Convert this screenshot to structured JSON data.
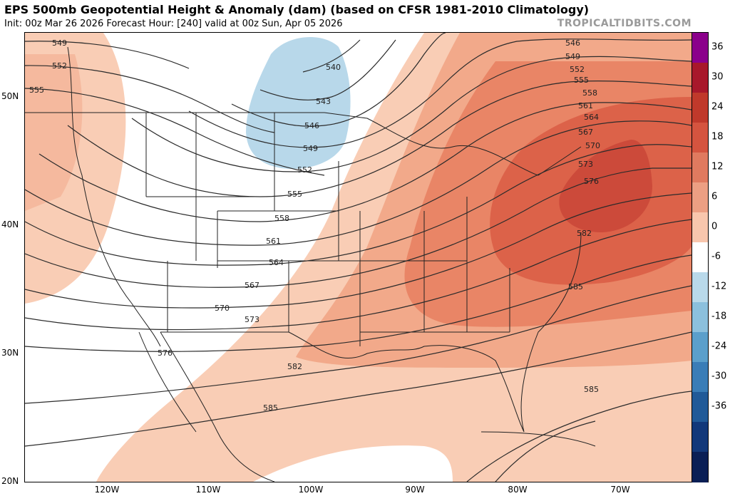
{
  "header": {
    "title": "EPS 500mb Geopotential Height & Anomaly (dam) (based on CFSR 1981-2010 Climatology)",
    "subtitle": "Init: 00z Mar 26 2026   Forecast Hour: [240]   valid at 00z Sun, Apr 05 2026",
    "watermark": "TROPICALTIDBITS.COM"
  },
  "axes": {
    "lat_labels": [
      "50N",
      "40N",
      "30N",
      "20N"
    ],
    "lon_labels": [
      "120W",
      "110W",
      "100W",
      "90W",
      "80W",
      "70W"
    ]
  },
  "colorbar": {
    "labels": [
      "36",
      "30",
      "24",
      "18",
      "12",
      "6",
      "0",
      "-6",
      "-12",
      "-18",
      "-24",
      "-30",
      "-36"
    ],
    "colors": [
      "#8b008b",
      "#a8182b",
      "#c0392b",
      "#d5543f",
      "#e07a5f",
      "#ec9f83",
      "#f8c6ad",
      "#ffffff",
      "#b9d9ea",
      "#8cc0dd",
      "#5b9fcb",
      "#3a7db7",
      "#215a98",
      "#12387a",
      "#0a1f55"
    ]
  },
  "contours": {
    "labels": [
      "549",
      "552",
      "555",
      "540",
      "543",
      "546",
      "549",
      "552",
      "555",
      "558",
      "561",
      "564",
      "567",
      "570",
      "573",
      "576",
      "582",
      "585",
      "546",
      "549",
      "552",
      "555",
      "558",
      "561",
      "564",
      "567",
      "570",
      "573",
      "576",
      "582",
      "585",
      "585"
    ]
  },
  "anomaly_colors": {
    "pos6": "#f9cdb5",
    "pos12": "#f2a98a",
    "pos18": "#e98566",
    "pos24": "#dc6249",
    "pos30": "#cc4a3a",
    "neg6": "#b8d8ea"
  }
}
